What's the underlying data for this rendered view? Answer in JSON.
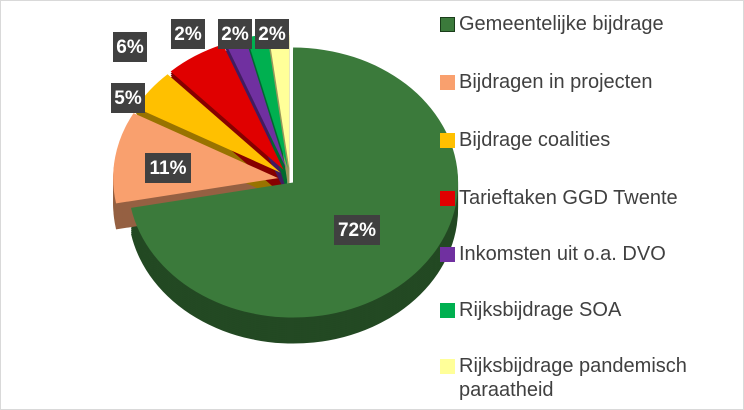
{
  "chart_data": {
    "type": "pie",
    "categories": [
      "Gemeentelijke bijdrage",
      "Bijdragen in projecten",
      "Bijdrage coalities",
      "Tarieftaken GGD Twente",
      "Inkomsten uit o.a. DVO",
      "Rijksbijdrage SOA",
      "Rijksbijdrage pandemisch paraatheid"
    ],
    "values": [
      72,
      11,
      5,
      6,
      2,
      2,
      2
    ],
    "value_labels": [
      "72%",
      "11%",
      "5%",
      "6%",
      "2%",
      "2%",
      "2%"
    ],
    "colors": [
      "#3b7a3b",
      "#f9a06e",
      "#ffc000",
      "#e00000",
      "#7030a0",
      "#00b050",
      "#ffff99"
    ],
    "legend": "right"
  }
}
